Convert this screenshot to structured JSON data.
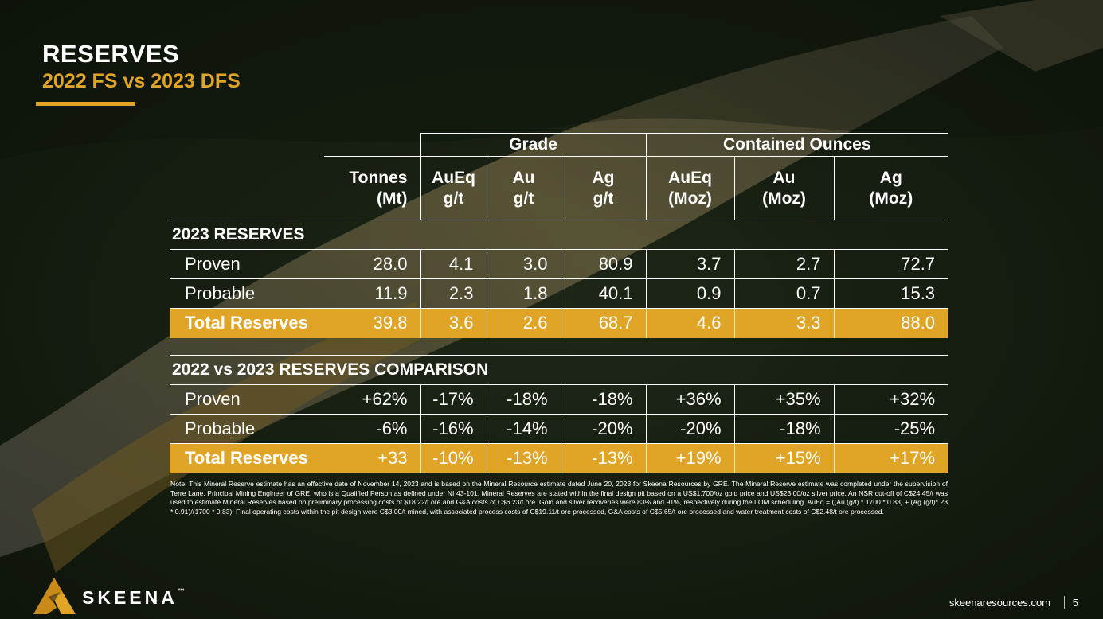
{
  "slide": {
    "title": "RESERVES",
    "subtitle": "2022 FS vs 2023 DFS"
  },
  "table": {
    "groups": {
      "grade": "Grade",
      "contained": "Contained Ounces"
    },
    "headers": [
      [
        "Tonnes",
        "(Mt)"
      ],
      [
        "AuEq",
        "g/t"
      ],
      [
        "Au",
        "g/t"
      ],
      [
        "Ag",
        "g/t"
      ],
      [
        "AuEq",
        "(Moz)"
      ],
      [
        "Au",
        "(Moz)"
      ],
      [
        "Ag",
        "(Moz)"
      ]
    ],
    "section1": {
      "title": "2023 RESERVES",
      "rows": [
        {
          "label": "Proven",
          "values": [
            "28.0",
            "4.1",
            "3.0",
            "80.9",
            "3.7",
            "2.7",
            "72.7"
          ]
        },
        {
          "label": "Probable",
          "values": [
            "11.9",
            "2.3",
            "1.8",
            "40.1",
            "0.9",
            "0.7",
            "15.3"
          ]
        }
      ],
      "total": {
        "label": "Total Reserves",
        "values": [
          "39.8",
          "3.6",
          "2.6",
          "68.7",
          "4.6",
          "3.3",
          "88.0"
        ]
      }
    },
    "section2": {
      "title": "2022 vs 2023 RESERVES COMPARISON",
      "rows": [
        {
          "label": "Proven",
          "values": [
            "+62%",
            "-17%",
            "-18%",
            "-18%",
            "+36%",
            "+35%",
            "+32%"
          ]
        },
        {
          "label": "Probable",
          "values": [
            "-6%",
            "-16%",
            "-14%",
            "-20%",
            "-20%",
            "-18%",
            "-25%"
          ]
        }
      ],
      "total": {
        "label": "Total Reserves",
        "values": [
          "+33",
          "-10%",
          "-13%",
          "-13%",
          "+19%",
          "+15%",
          "+17%"
        ]
      }
    }
  },
  "note": "Note: This Mineral Reserve estimate has an effective date of November 14, 2023 and is based on the Mineral Resource estimate dated June 20, 2023 for Skeena Resources by GRE. The Mineral Reserve estimate was completed under the supervision of Terre Lane, Principal Mining Engineer of GRE, who is a Qualified Person as defined under NI 43-101. Mineral Reserves are stated within the final design pit based on a US$1,700/oz gold price and US$23.00/oz silver price. An NSR cut-off of C$24.45/t was used to estimate Mineral Reserves based on preliminary processing costs of $18.22/t ore and G&A costs of C$6.23/t ore. Gold and silver recoveries were 83% and 91%, respectively during the LOM scheduling. AuEq = ((Au (g/t) * 1700 * 0.83) + (Ag (g/t)* 23 * 0.91)/(1700 * 0.83). Final operating costs within the pit design were C$3.00/t mined, with associated process costs of C$19.11/t ore processed, G&A costs of C$5.65/t ore processed and water treatment costs of C$2.48/t ore processed.",
  "footer": {
    "brand": "SKEENA",
    "trademark": "™",
    "url": "skeenaresources.com",
    "page": "5"
  },
  "colors": {
    "accent": "#e0a526",
    "text": "#ffffff"
  },
  "icons": {
    "logo": "skeena-logo-icon"
  }
}
